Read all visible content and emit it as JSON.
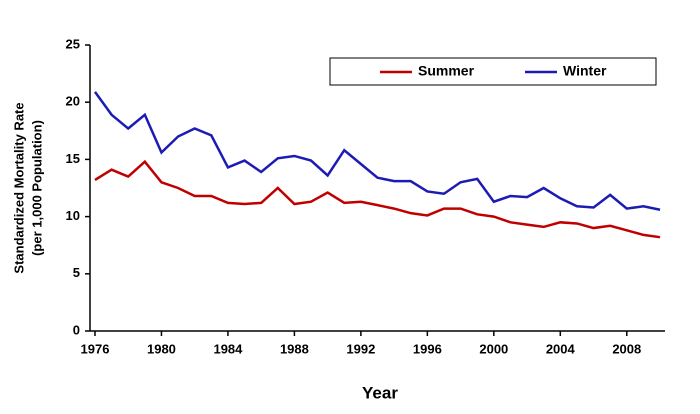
{
  "chart_data": {
    "type": "line",
    "x_label": "Year",
    "y_label": [
      "Standardized Mortality Rate",
      "(per 1,000 Population)"
    ],
    "x": [
      1976,
      1977,
      1978,
      1979,
      1980,
      1981,
      1982,
      1983,
      1984,
      1985,
      1986,
      1987,
      1988,
      1989,
      1990,
      1991,
      1992,
      1993,
      1994,
      1995,
      1996,
      1997,
      1998,
      1999,
      2000,
      2001,
      2002,
      2003,
      2004,
      2005,
      2006,
      2007,
      2008,
      2009,
      2010
    ],
    "series": [
      {
        "name": "Summer",
        "color": "#c00000",
        "values": [
          13.2,
          14.1,
          13.5,
          14.8,
          13.0,
          12.5,
          11.8,
          11.8,
          11.2,
          11.1,
          11.2,
          12.5,
          11.1,
          11.3,
          12.1,
          11.2,
          11.3,
          11.0,
          10.7,
          10.3,
          10.1,
          10.7,
          10.7,
          10.2,
          10.0,
          9.5,
          9.3,
          9.1,
          9.5,
          9.4,
          9.0,
          9.2,
          8.8,
          8.4,
          8.2
        ]
      },
      {
        "name": "Winter",
        "color": "#1c1cb4",
        "values": [
          20.9,
          18.9,
          17.7,
          18.9,
          15.6,
          17.0,
          17.7,
          17.1,
          14.3,
          14.9,
          13.9,
          15.1,
          15.3,
          14.9,
          13.6,
          15.8,
          14.6,
          13.4,
          13.1,
          13.1,
          12.2,
          12.0,
          13.0,
          13.3,
          11.3,
          11.8,
          11.7,
          12.5,
          11.6,
          10.9,
          10.8,
          11.9,
          10.7,
          10.9,
          10.6
        ]
      }
    ],
    "xlim": [
      1975.7,
      2010.3
    ],
    "xticks": [
      1976,
      1980,
      1984,
      1988,
      1992,
      1996,
      2000,
      2004,
      2008
    ],
    "ylim": [
      0,
      25
    ],
    "yticks": [
      0,
      5,
      10,
      15,
      20,
      25
    ],
    "legend": "top-right"
  }
}
